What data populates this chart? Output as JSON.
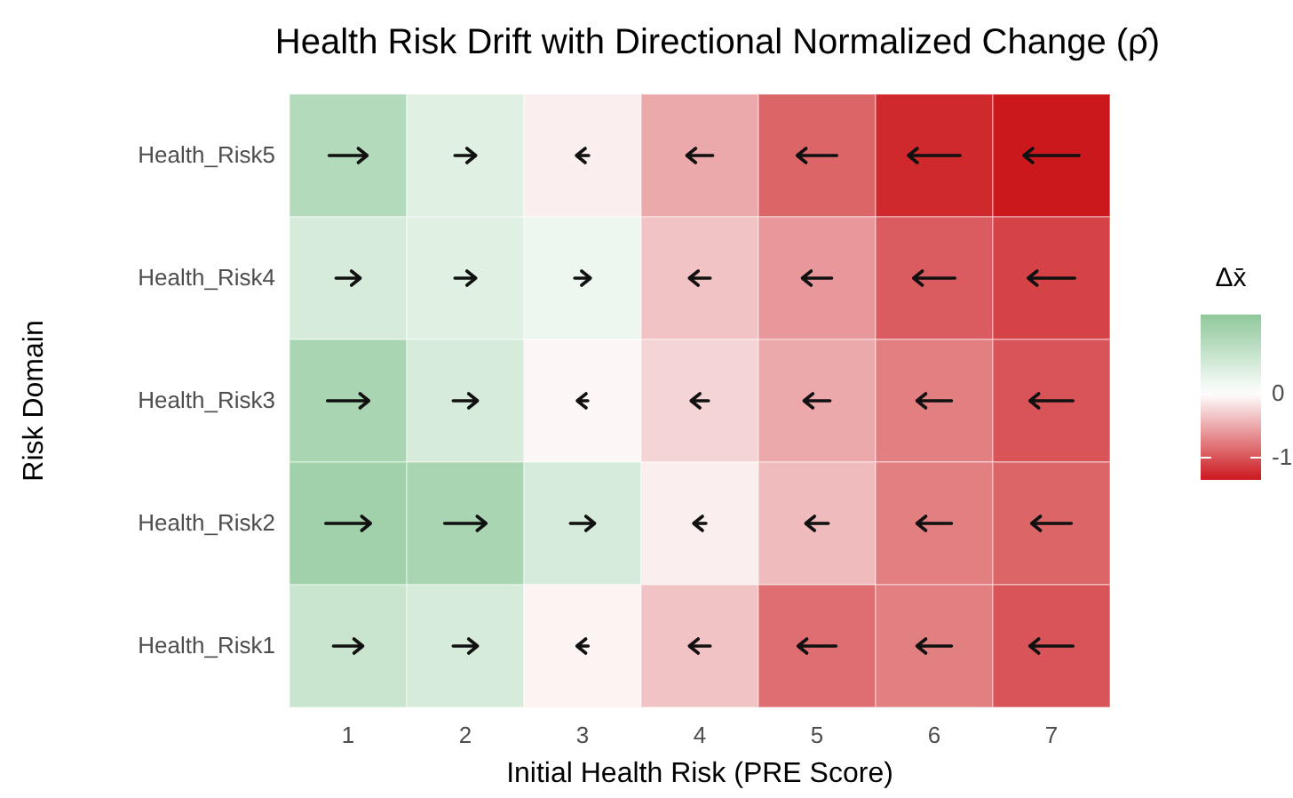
{
  "chart_data": {
    "type": "heatmap",
    "title": "Health Risk Drift with Directional Normalized Change (ρ̂)",
    "xlabel": "Initial Health Risk (PRE Score)",
    "ylabel": "Risk Domain",
    "clabel": "Δx̄",
    "categories": [
      "1",
      "2",
      "3",
      "4",
      "5",
      "6",
      "7"
    ],
    "y_categories": [
      "Health_Risk5",
      "Health_Risk4",
      "Health_Risk3",
      "Health_Risk2",
      "Health_Risk1"
    ],
    "cells": [
      [
        0.85,
        0.35,
        -0.1,
        -0.5,
        -0.9,
        -1.25,
        -1.35
      ],
      [
        0.45,
        0.35,
        0.2,
        -0.35,
        -0.6,
        -0.95,
        -1.1
      ],
      [
        0.95,
        0.45,
        -0.05,
        -0.25,
        -0.5,
        -0.75,
        -1.0
      ],
      [
        1.05,
        0.95,
        0.45,
        -0.1,
        -0.4,
        -0.75,
        -0.9
      ],
      [
        0.6,
        0.45,
        -0.07,
        -0.35,
        -0.85,
        -0.75,
        -1.0
      ]
    ],
    "clim": [
      -1.35,
      1.25
    ],
    "cticks": [
      -1,
      0
    ]
  }
}
